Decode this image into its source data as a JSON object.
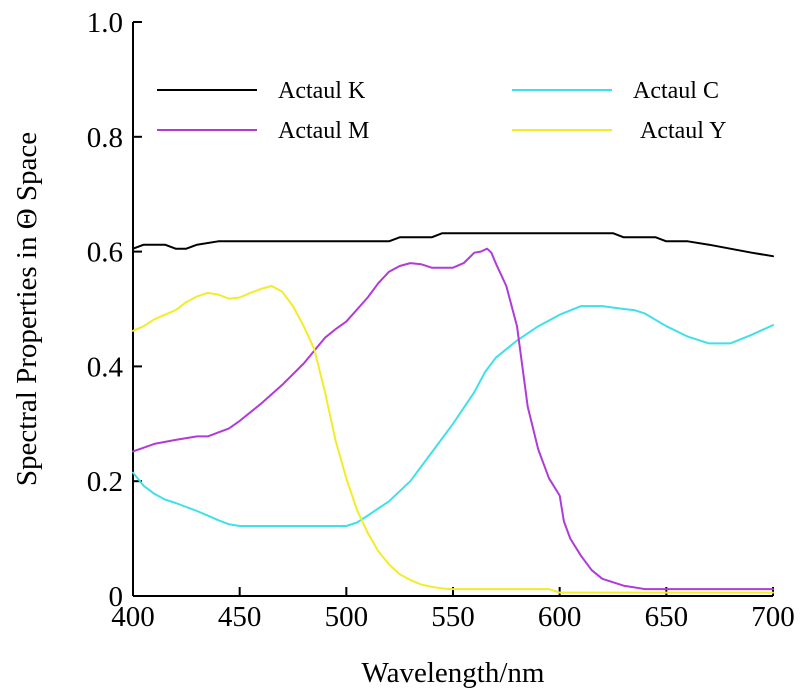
{
  "chart_data": {
    "type": "line",
    "title": "",
    "xlabel": "Wavelength/nm",
    "ylabel": "Spectral Properties in Θ Space",
    "xlim": [
      400,
      700
    ],
    "ylim": [
      0,
      1.0
    ],
    "xticks": [
      400,
      450,
      500,
      550,
      600,
      650,
      700
    ],
    "xtick_labels": [
      "400",
      "450",
      "500",
      "550",
      "600",
      "650",
      "700"
    ],
    "yticks": [
      0,
      0.2,
      0.4,
      0.6,
      0.8,
      1.0
    ],
    "ytick_labels": [
      "0",
      "0.2",
      "0.4",
      "0.6",
      "0.8",
      "1.0"
    ],
    "grid": false,
    "legend_position": "top",
    "series": [
      {
        "name": "Actaul K",
        "color": "#000000",
        "x": [
          400,
          405,
          410,
          415,
          420,
          425,
          430,
          440,
          450,
          460,
          470,
          480,
          490,
          500,
          510,
          520,
          525,
          530,
          535,
          540,
          545,
          550,
          560,
          570,
          580,
          590,
          600,
          610,
          620,
          625,
          630,
          640,
          645,
          650,
          660,
          670,
          680,
          690,
          700
        ],
        "y": [
          0.605,
          0.612,
          0.612,
          0.612,
          0.605,
          0.605,
          0.612,
          0.618,
          0.618,
          0.618,
          0.618,
          0.618,
          0.618,
          0.618,
          0.618,
          0.618,
          0.625,
          0.625,
          0.625,
          0.625,
          0.632,
          0.632,
          0.632,
          0.632,
          0.632,
          0.632,
          0.632,
          0.632,
          0.632,
          0.632,
          0.625,
          0.625,
          0.625,
          0.618,
          0.618,
          0.612,
          0.605,
          0.598,
          0.592
        ]
      },
      {
        "name": "Actaul C",
        "color": "#3fe0e8",
        "x": [
          400,
          405,
          410,
          415,
          420,
          425,
          430,
          435,
          440,
          445,
          450,
          460,
          470,
          480,
          490,
          500,
          505,
          510,
          520,
          530,
          540,
          550,
          560,
          565,
          570,
          575,
          580,
          590,
          600,
          610,
          620,
          630,
          635,
          640,
          650,
          660,
          670,
          680,
          690,
          700
        ],
        "y": [
          0.215,
          0.192,
          0.178,
          0.168,
          0.162,
          0.155,
          0.148,
          0.14,
          0.132,
          0.125,
          0.122,
          0.122,
          0.122,
          0.122,
          0.122,
          0.122,
          0.128,
          0.14,
          0.165,
          0.2,
          0.25,
          0.3,
          0.355,
          0.39,
          0.415,
          0.43,
          0.445,
          0.47,
          0.49,
          0.505,
          0.505,
          0.5,
          0.498,
          0.492,
          0.47,
          0.452,
          0.44,
          0.44,
          0.455,
          0.472
        ]
      },
      {
        "name": "Actaul M",
        "color": "#b03bd8",
        "x": [
          400,
          410,
          420,
          430,
          435,
          440,
          445,
          450,
          460,
          470,
          480,
          490,
          495,
          500,
          510,
          515,
          520,
          525,
          530,
          535,
          540,
          545,
          550,
          555,
          560,
          563,
          566,
          568,
          570,
          575,
          580,
          585,
          590,
          595,
          600,
          602,
          605,
          610,
          615,
          620,
          630,
          640,
          650,
          660,
          670,
          680,
          690,
          700
        ],
        "y": [
          0.252,
          0.265,
          0.272,
          0.278,
          0.278,
          0.285,
          0.292,
          0.305,
          0.335,
          0.368,
          0.405,
          0.45,
          0.465,
          0.478,
          0.52,
          0.545,
          0.565,
          0.575,
          0.58,
          0.578,
          0.572,
          0.572,
          0.572,
          0.58,
          0.598,
          0.6,
          0.605,
          0.598,
          0.58,
          0.54,
          0.47,
          0.33,
          0.255,
          0.205,
          0.175,
          0.13,
          0.1,
          0.07,
          0.045,
          0.03,
          0.018,
          0.012,
          0.012,
          0.012,
          0.012,
          0.012,
          0.012,
          0.012
        ]
      },
      {
        "name": "Actaul Y",
        "color": "#f2ec2a",
        "x": [
          400,
          405,
          410,
          415,
          420,
          425,
          430,
          435,
          440,
          445,
          450,
          455,
          460,
          465,
          470,
          475,
          480,
          485,
          490,
          495,
          500,
          505,
          510,
          515,
          520,
          525,
          530,
          535,
          540,
          545,
          550,
          560,
          570,
          580,
          590,
          595,
          600,
          610,
          620,
          630,
          640,
          650,
          660,
          670,
          680,
          690,
          700
        ],
        "y": [
          0.462,
          0.47,
          0.482,
          0.49,
          0.498,
          0.512,
          0.522,
          0.528,
          0.525,
          0.518,
          0.52,
          0.528,
          0.535,
          0.54,
          0.53,
          0.505,
          0.47,
          0.43,
          0.355,
          0.27,
          0.205,
          0.15,
          0.11,
          0.078,
          0.055,
          0.038,
          0.028,
          0.02,
          0.016,
          0.013,
          0.012,
          0.012,
          0.012,
          0.012,
          0.012,
          0.012,
          0.006,
          0.006,
          0.006,
          0.006,
          0.006,
          0.006,
          0.006,
          0.006,
          0.006,
          0.006,
          0.006
        ]
      }
    ]
  }
}
